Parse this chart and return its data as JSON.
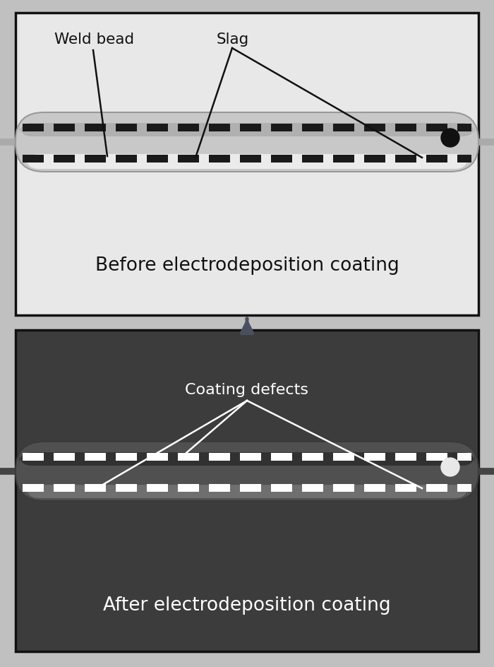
{
  "fig_width": 7.0,
  "fig_height": 9.44,
  "bg_color": "#c0c0c0",
  "panel1_bg": "#e8e8e8",
  "panel2_bg": "#3c3c3c",
  "panel1_border": "#111111",
  "panel2_border": "#111111",
  "top_label1": "Weld bead",
  "top_label2": "Slag",
  "bottom_label1": "Coating defects",
  "panel1_caption": "Before electrodeposition coating",
  "panel2_caption": "After electrodeposition coating",
  "dash_color1": "#1a1a1a",
  "dash_color2": "#ffffff",
  "arrow_color": "#4a5060",
  "line_color1": "#111111",
  "line_color2": "#ffffff"
}
